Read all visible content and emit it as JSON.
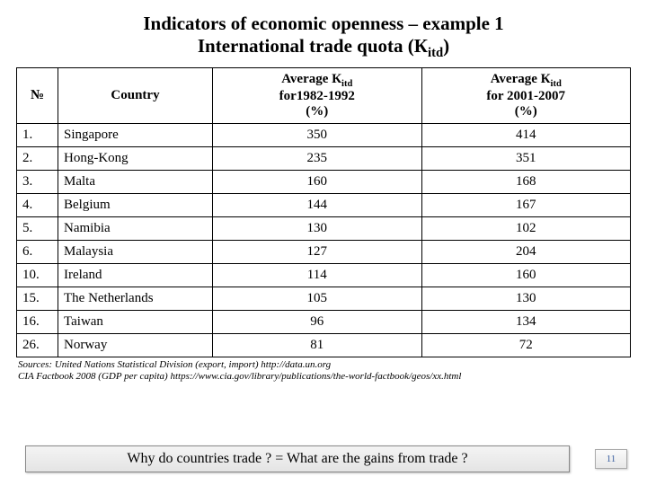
{
  "title_line1": "Indicators of economic openness – example 1",
  "title_line2_a": "International trade quota (К",
  "title_line2_sub": "itd",
  "title_line2_b": ")",
  "headers": {
    "num": "№",
    "country": "Country",
    "avg_a_l1": "Average К",
    "avg_a_sub": "itd",
    "avg_a_l2": "for1982-1992",
    "avg_a_l3": "(%)",
    "avg_b_l1": "Average К",
    "avg_b_sub": "itd",
    "avg_b_l2": "for 2001-2007",
    "avg_b_l3": "(%)"
  },
  "rows": [
    {
      "n": "1.",
      "country": "Singapore",
      "a": "350",
      "b": "414"
    },
    {
      "n": "2.",
      "country": "Hong-Kong",
      "a": "235",
      "b": "351"
    },
    {
      "n": "3.",
      "country": "Malta",
      "a": "160",
      "b": "168"
    },
    {
      "n": "4.",
      "country": "Belgium",
      "a": "144",
      "b": "167"
    },
    {
      "n": "5.",
      "country": "Namibia",
      "a": "130",
      "b": "102"
    },
    {
      "n": "6.",
      "country": "Malaysia",
      "a": "127",
      "b": "204"
    },
    {
      "n": "10.",
      "country": "Ireland",
      "a": "114",
      "b": "160"
    },
    {
      "n": "15.",
      "country": "The Netherlands",
      "a": "105",
      "b": "130"
    },
    {
      "n": "16.",
      "country": "Taiwan",
      "a": "96",
      "b": "134"
    },
    {
      "n": "26.",
      "country": "Norway",
      "a": "81",
      "b": "72"
    }
  ],
  "sources_l1": "Sources: United Nations Statistical Division (export, import) http://data.un.org",
  "sources_l2": "CIA Factbook 2008 (GDP per capita) https://www.cia.gov/library/publications/the-world-factbook/geos/xx.html",
  "footer": "Why do countries trade ? = What are the gains from trade ?",
  "page": "11"
}
